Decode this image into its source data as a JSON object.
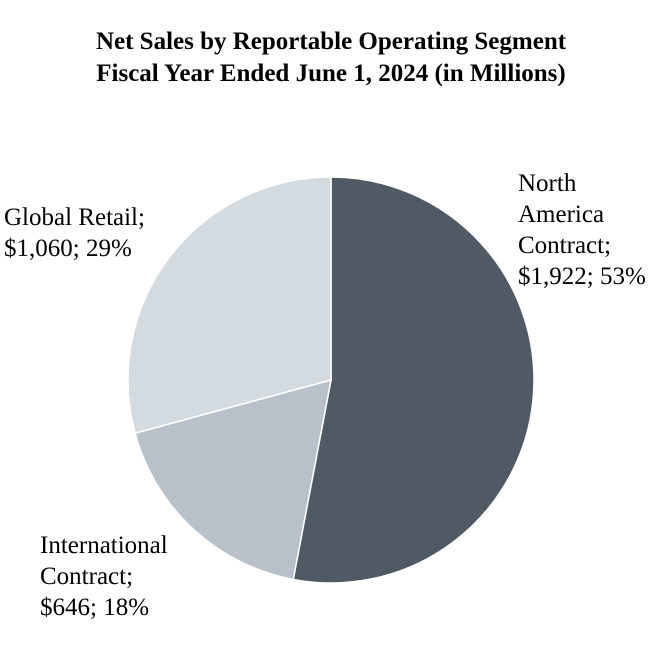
{
  "chart_data": {
    "type": "pie",
    "title": [
      "Net Sales by Reportable Operating Segment",
      "Fiscal Year Ended June 1, 2024 (in Millions)"
    ],
    "slices": [
      {
        "name": "North America Contract",
        "value": 1922,
        "percent": 53,
        "color": "#505a64",
        "label_lines": [
          "North",
          "America",
          "Contract;",
          "$1,922; 53%"
        ]
      },
      {
        "name": "International Contract",
        "value": 646,
        "percent": 18,
        "color": "#b8c1ca",
        "label_lines": [
          "International",
          "Contract;",
          "$646; 18%"
        ]
      },
      {
        "name": "Global Retail",
        "value": 1060,
        "percent": 29,
        "color": "#d3dae0",
        "label_lines": [
          "Global Retail;",
          "$1,060; 29%"
        ]
      }
    ],
    "start_angle": "12 o'clock",
    "direction": "clockwise"
  }
}
